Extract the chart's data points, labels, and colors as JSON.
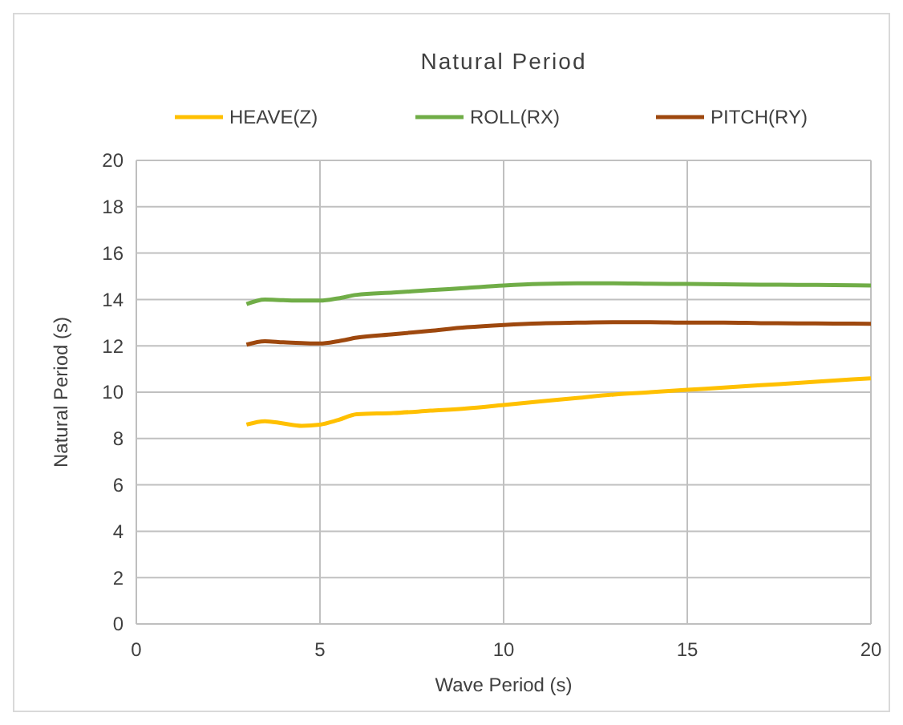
{
  "chart_data": {
    "type": "line",
    "title": "Natural Period",
    "xlabel": "Wave Period (s)",
    "ylabel": "Natural Period (s)",
    "x": [
      3,
      3.5,
      4,
      4.5,
      5,
      5.5,
      6,
      7,
      8,
      9,
      10,
      11,
      12,
      13,
      14,
      15,
      16,
      17,
      18,
      19,
      20
    ],
    "series": [
      {
        "name": "HEAVE(Z)",
        "color": "#ffc000",
        "values": [
          8.6,
          8.75,
          8.65,
          8.55,
          8.6,
          8.8,
          9.05,
          9.1,
          9.2,
          9.3,
          9.45,
          9.6,
          9.75,
          9.9,
          10.0,
          10.1,
          10.2,
          10.3,
          10.4,
          10.5,
          10.6
        ]
      },
      {
        "name": "ROLL(RX)",
        "color": "#70ad47",
        "values": [
          13.8,
          14.0,
          13.97,
          13.95,
          13.95,
          14.05,
          14.2,
          14.3,
          14.4,
          14.5,
          14.6,
          14.67,
          14.7,
          14.7,
          14.68,
          14.67,
          14.65,
          14.64,
          14.63,
          14.62,
          14.6
        ]
      },
      {
        "name": "PITCH(RY)",
        "color": "#9e480e",
        "values": [
          12.05,
          12.2,
          12.15,
          12.12,
          12.1,
          12.2,
          12.35,
          12.5,
          12.65,
          12.8,
          12.9,
          12.97,
          13.0,
          13.02,
          13.02,
          13.0,
          13.0,
          12.98,
          12.97,
          12.96,
          12.95
        ]
      }
    ],
    "xlim": [
      0,
      20
    ],
    "xticks": [
      0,
      5,
      10,
      15,
      20
    ],
    "ylim": [
      0,
      20
    ],
    "yticks": [
      0,
      2,
      4,
      6,
      8,
      10,
      12,
      14,
      16,
      18,
      20
    ],
    "grid": true,
    "legend": "top",
    "marker": "none",
    "line_style": "solid"
  }
}
